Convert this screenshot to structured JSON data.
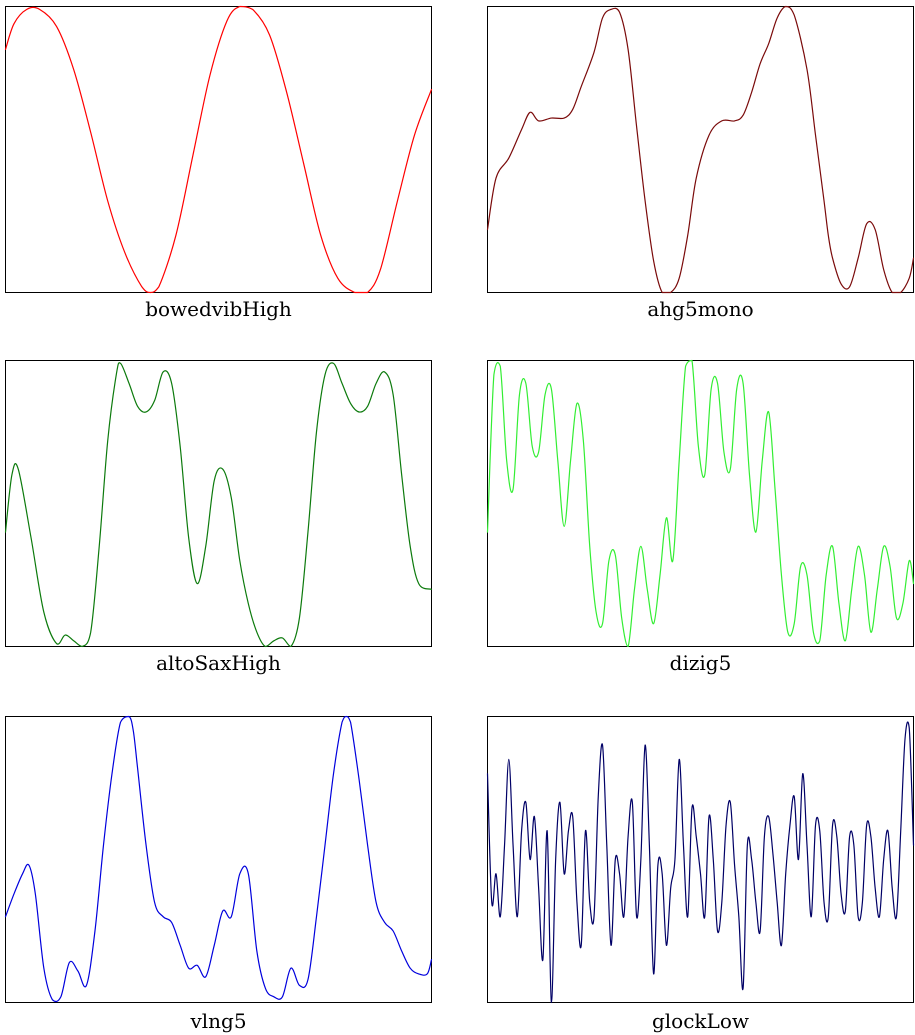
{
  "chart_data": [
    {
      "type": "line",
      "title": "bowedvibHigh",
      "color": "#ff0000",
      "grid": false,
      "axes_ticks": false,
      "x": [
        0,
        0.02,
        0.05,
        0.08,
        0.12,
        0.16,
        0.2,
        0.24,
        0.28,
        0.32,
        0.34,
        0.36,
        0.4,
        0.44,
        0.48,
        0.52,
        0.55,
        0.58,
        0.62,
        0.66,
        0.7,
        0.74,
        0.78,
        0.82,
        0.85,
        0.88,
        0.92,
        0.96,
        1.0
      ],
      "y": [
        0.85,
        0.94,
        0.99,
        0.99,
        0.93,
        0.78,
        0.56,
        0.32,
        0.14,
        0.02,
        0.0,
        0.02,
        0.2,
        0.48,
        0.76,
        0.95,
        1.0,
        0.99,
        0.9,
        0.7,
        0.45,
        0.2,
        0.05,
        0.0,
        0.0,
        0.08,
        0.32,
        0.55,
        0.71
      ]
    },
    {
      "type": "line",
      "title": "ahg5mono",
      "color": "#7a0a0a",
      "grid": false,
      "axes_ticks": false,
      "x": [
        0,
        0.02,
        0.05,
        0.08,
        0.1,
        0.12,
        0.15,
        0.18,
        0.2,
        0.22,
        0.25,
        0.27,
        0.29,
        0.31,
        0.33,
        0.35,
        0.37,
        0.39,
        0.41,
        0.43,
        0.45,
        0.47,
        0.49,
        0.52,
        0.55,
        0.58,
        0.6,
        0.62,
        0.64,
        0.66,
        0.68,
        0.7,
        0.72,
        0.75,
        0.77,
        0.79,
        0.8,
        0.81,
        0.83,
        0.85,
        0.87,
        0.89,
        0.91,
        0.93,
        0.95,
        0.97,
        0.99,
        1.0
      ],
      "y": [
        0.22,
        0.4,
        0.47,
        0.57,
        0.63,
        0.6,
        0.61,
        0.61,
        0.64,
        0.72,
        0.84,
        0.96,
        0.99,
        0.98,
        0.85,
        0.58,
        0.32,
        0.11,
        0.0,
        0.0,
        0.05,
        0.2,
        0.4,
        0.55,
        0.6,
        0.6,
        0.62,
        0.7,
        0.8,
        0.87,
        0.96,
        1.0,
        0.97,
        0.78,
        0.55,
        0.32,
        0.2,
        0.12,
        0.03,
        0.02,
        0.12,
        0.24,
        0.22,
        0.08,
        0.0,
        0.0,
        0.05,
        0.12
      ]
    },
    {
      "type": "line",
      "title": "altoSaxHigh",
      "color": "#0c7a0c",
      "grid": false,
      "axes_ticks": false,
      "x": [
        0,
        0.015,
        0.03,
        0.06,
        0.09,
        0.12,
        0.14,
        0.16,
        0.18,
        0.2,
        0.22,
        0.24,
        0.26,
        0.27,
        0.29,
        0.31,
        0.33,
        0.35,
        0.37,
        0.39,
        0.41,
        0.43,
        0.45,
        0.47,
        0.49,
        0.51,
        0.53,
        0.55,
        0.57,
        0.59,
        0.61,
        0.63,
        0.65,
        0.67,
        0.69,
        0.71,
        0.73,
        0.75,
        0.77,
        0.79,
        0.81,
        0.83,
        0.85,
        0.87,
        0.89,
        0.91,
        0.93,
        0.95,
        0.97,
        1.0
      ],
      "y": [
        0.4,
        0.6,
        0.62,
        0.38,
        0.12,
        0.01,
        0.04,
        0.02,
        0.0,
        0.05,
        0.35,
        0.72,
        0.95,
        0.99,
        0.92,
        0.84,
        0.82,
        0.86,
        0.96,
        0.92,
        0.7,
        0.38,
        0.22,
        0.35,
        0.58,
        0.62,
        0.52,
        0.3,
        0.15,
        0.05,
        0.0,
        0.02,
        0.03,
        0.0,
        0.1,
        0.4,
        0.75,
        0.95,
        0.99,
        0.92,
        0.85,
        0.82,
        0.84,
        0.92,
        0.96,
        0.88,
        0.6,
        0.35,
        0.22,
        0.2
      ]
    },
    {
      "type": "line",
      "title": "dizig5",
      "color": "#33ee33",
      "grid": false,
      "axes_ticks": false,
      "x": [
        0,
        0.015,
        0.03,
        0.045,
        0.06,
        0.075,
        0.09,
        0.105,
        0.12,
        0.135,
        0.15,
        0.165,
        0.18,
        0.195,
        0.21,
        0.225,
        0.24,
        0.255,
        0.27,
        0.285,
        0.3,
        0.315,
        0.33,
        0.345,
        0.36,
        0.375,
        0.39,
        0.405,
        0.42,
        0.435,
        0.45,
        0.465,
        0.48,
        0.495,
        0.51,
        0.525,
        0.54,
        0.555,
        0.57,
        0.585,
        0.6,
        0.615,
        0.63,
        0.645,
        0.66,
        0.675,
        0.69,
        0.705,
        0.72,
        0.735,
        0.75,
        0.765,
        0.78,
        0.795,
        0.81,
        0.825,
        0.84,
        0.855,
        0.87,
        0.885,
        0.9,
        0.915,
        0.93,
        0.945,
        0.96,
        0.975,
        0.99,
        1.0
      ],
      "y": [
        0.4,
        0.95,
        0.98,
        0.65,
        0.55,
        0.88,
        0.92,
        0.7,
        0.68,
        0.88,
        0.9,
        0.65,
        0.42,
        0.65,
        0.85,
        0.72,
        0.35,
        0.12,
        0.08,
        0.3,
        0.32,
        0.1,
        0.0,
        0.2,
        0.35,
        0.2,
        0.08,
        0.25,
        0.45,
        0.3,
        0.65,
        0.98,
        1.0,
        0.7,
        0.6,
        0.9,
        0.92,
        0.68,
        0.62,
        0.9,
        0.92,
        0.6,
        0.4,
        0.65,
        0.82,
        0.55,
        0.25,
        0.05,
        0.08,
        0.28,
        0.25,
        0.05,
        0.02,
        0.25,
        0.35,
        0.15,
        0.02,
        0.2,
        0.35,
        0.25,
        0.05,
        0.2,
        0.35,
        0.28,
        0.1,
        0.15,
        0.3,
        0.22
      ]
    },
    {
      "type": "line",
      "title": "vlng5",
      "color": "#0000dd",
      "grid": false,
      "axes_ticks": false,
      "x": [
        0,
        0.02,
        0.04,
        0.055,
        0.07,
        0.09,
        0.11,
        0.13,
        0.15,
        0.17,
        0.19,
        0.21,
        0.23,
        0.25,
        0.27,
        0.29,
        0.3,
        0.31,
        0.33,
        0.35,
        0.37,
        0.39,
        0.41,
        0.43,
        0.45,
        0.47,
        0.49,
        0.51,
        0.53,
        0.55,
        0.57,
        0.59,
        0.61,
        0.63,
        0.65,
        0.67,
        0.69,
        0.71,
        0.73,
        0.75,
        0.77,
        0.79,
        0.8,
        0.81,
        0.83,
        0.85,
        0.87,
        0.89,
        0.91,
        0.93,
        0.95,
        0.97,
        0.99,
        1.0
      ],
      "y": [
        0.3,
        0.38,
        0.45,
        0.48,
        0.38,
        0.12,
        0.01,
        0.02,
        0.14,
        0.11,
        0.06,
        0.25,
        0.55,
        0.8,
        0.98,
        1.0,
        0.95,
        0.82,
        0.55,
        0.35,
        0.3,
        0.28,
        0.2,
        0.12,
        0.13,
        0.09,
        0.2,
        0.32,
        0.3,
        0.45,
        0.45,
        0.18,
        0.05,
        0.02,
        0.02,
        0.12,
        0.06,
        0.08,
        0.3,
        0.55,
        0.8,
        0.98,
        1.0,
        0.98,
        0.78,
        0.55,
        0.35,
        0.28,
        0.25,
        0.18,
        0.12,
        0.1,
        0.1,
        0.15
      ]
    },
    {
      "type": "line",
      "title": "glockLow",
      "color": "#000066",
      "grid": false,
      "axes_ticks": false,
      "x": [
        0,
        0.01,
        0.02,
        0.03,
        0.04,
        0.05,
        0.06,
        0.07,
        0.08,
        0.09,
        0.1,
        0.11,
        0.12,
        0.13,
        0.14,
        0.15,
        0.16,
        0.17,
        0.18,
        0.19,
        0.2,
        0.21,
        0.22,
        0.23,
        0.24,
        0.25,
        0.26,
        0.27,
        0.28,
        0.29,
        0.3,
        0.31,
        0.32,
        0.33,
        0.34,
        0.35,
        0.36,
        0.37,
        0.38,
        0.39,
        0.4,
        0.41,
        0.42,
        0.43,
        0.44,
        0.45,
        0.46,
        0.47,
        0.48,
        0.49,
        0.5,
        0.51,
        0.52,
        0.53,
        0.54,
        0.55,
        0.56,
        0.57,
        0.58,
        0.59,
        0.6,
        0.61,
        0.62,
        0.63,
        0.64,
        0.65,
        0.66,
        0.67,
        0.68,
        0.69,
        0.7,
        0.71,
        0.72,
        0.73,
        0.74,
        0.75,
        0.76,
        0.77,
        0.78,
        0.79,
        0.8,
        0.81,
        0.82,
        0.83,
        0.84,
        0.85,
        0.86,
        0.87,
        0.88,
        0.89,
        0.9,
        0.91,
        0.92,
        0.93,
        0.94,
        0.95,
        0.96,
        0.97,
        0.98,
        0.99,
        1.0
      ],
      "y": [
        0.8,
        0.35,
        0.45,
        0.3,
        0.55,
        0.85,
        0.55,
        0.3,
        0.6,
        0.7,
        0.5,
        0.65,
        0.4,
        0.15,
        0.6,
        0.0,
        0.5,
        0.7,
        0.45,
        0.6,
        0.65,
        0.35,
        0.2,
        0.6,
        0.35,
        0.3,
        0.72,
        0.9,
        0.55,
        0.2,
        0.5,
        0.45,
        0.3,
        0.58,
        0.7,
        0.3,
        0.5,
        0.9,
        0.55,
        0.1,
        0.48,
        0.45,
        0.2,
        0.4,
        0.5,
        0.85,
        0.55,
        0.3,
        0.68,
        0.58,
        0.45,
        0.3,
        0.65,
        0.5,
        0.25,
        0.35,
        0.62,
        0.7,
        0.48,
        0.3,
        0.05,
        0.55,
        0.5,
        0.35,
        0.25,
        0.58,
        0.65,
        0.52,
        0.35,
        0.2,
        0.45,
        0.62,
        0.72,
        0.5,
        0.8,
        0.55,
        0.3,
        0.62,
        0.6,
        0.35,
        0.3,
        0.62,
        0.58,
        0.38,
        0.32,
        0.58,
        0.55,
        0.3,
        0.35,
        0.62,
        0.58,
        0.4,
        0.3,
        0.5,
        0.6,
        0.4,
        0.3,
        0.6,
        0.92,
        0.96,
        0.55
      ]
    }
  ]
}
